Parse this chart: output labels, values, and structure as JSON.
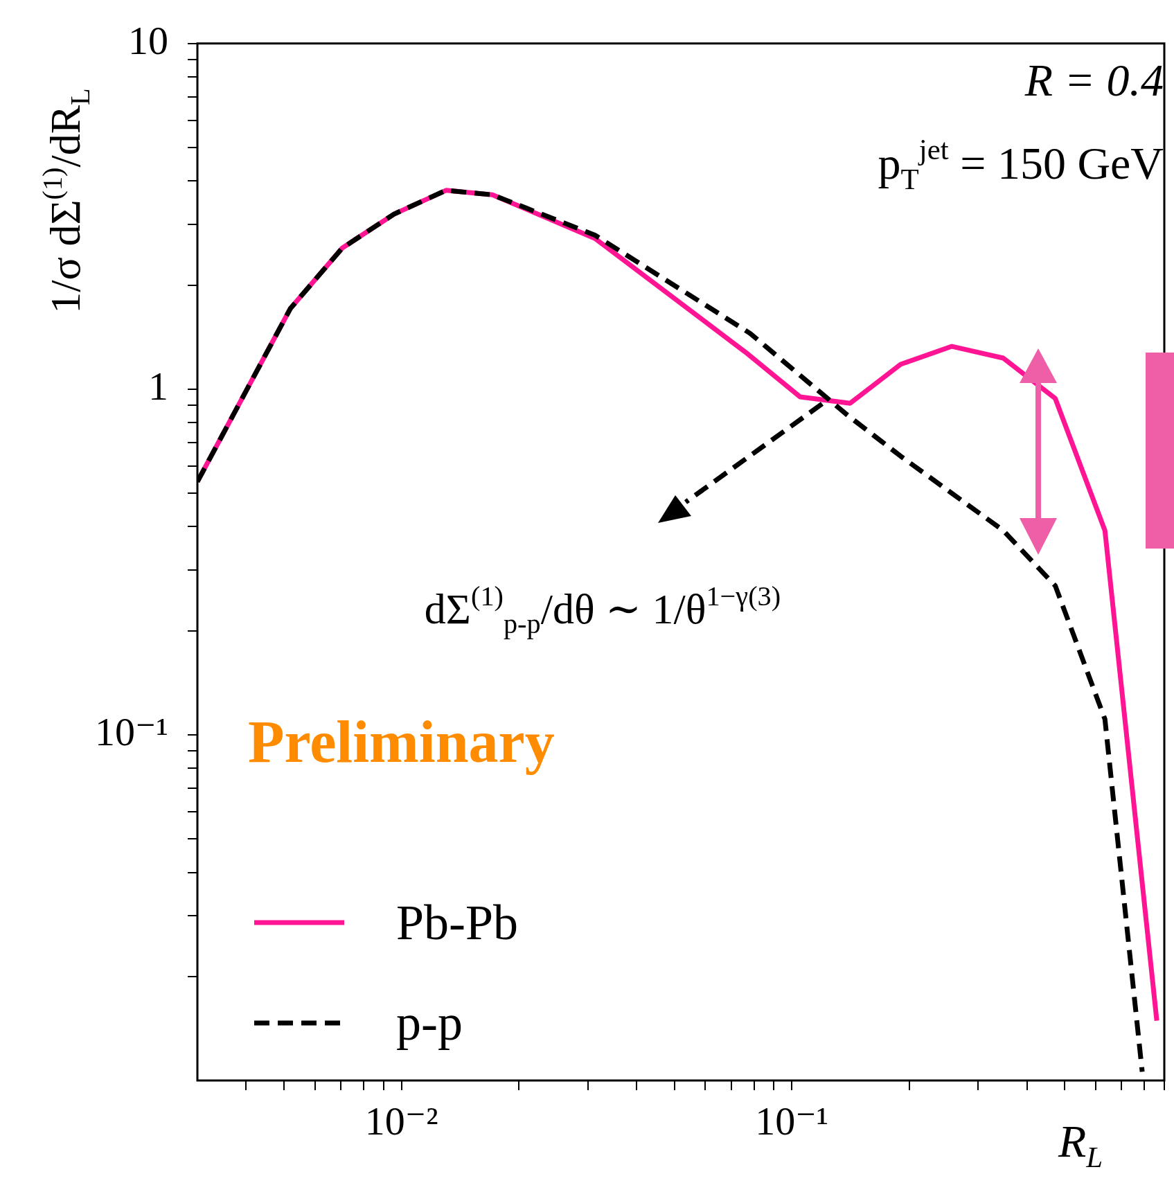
{
  "chart_data": {
    "type": "line",
    "xlabel": "R$_{L}$",
    "ylabel": "1/σ dΣ$^{(1)}$/dR$_{L}$",
    "log": "xy",
    "xlim": [
      0.003,
      0.9
    ],
    "ylim": [
      0.01,
      10
    ],
    "xticks": [
      {
        "value": 0.004,
        "label": null
      },
      {
        "value": 0.005,
        "label": null
      },
      {
        "value": 0.006,
        "label": null
      },
      {
        "value": 0.007,
        "label": null
      },
      {
        "value": 0.008,
        "label": null
      },
      {
        "value": 0.009,
        "label": null
      },
      {
        "value": 0.01,
        "label": "10⁻²"
      },
      {
        "value": 0.02,
        "label": null
      },
      {
        "value": 0.03,
        "label": null
      },
      {
        "value": 0.04,
        "label": null
      },
      {
        "value": 0.05,
        "label": null
      },
      {
        "value": 0.06,
        "label": null
      },
      {
        "value": 0.07,
        "label": null
      },
      {
        "value": 0.08,
        "label": null
      },
      {
        "value": 0.09,
        "label": null
      },
      {
        "value": 0.1,
        "label": "10⁻¹"
      },
      {
        "value": 0.2,
        "label": null
      },
      {
        "value": 0.3,
        "label": null
      },
      {
        "value": 0.4,
        "label": null
      },
      {
        "value": 0.5,
        "label": null
      },
      {
        "value": 0.6,
        "label": null
      },
      {
        "value": 0.7,
        "label": null
      },
      {
        "value": 0.8,
        "label": null
      },
      {
        "value": 0.9,
        "label": null
      }
    ],
    "yticks": [
      {
        "value": 0.02,
        "label": null
      },
      {
        "value": 0.03,
        "label": null
      },
      {
        "value": 0.04,
        "label": null
      },
      {
        "value": 0.05,
        "label": null
      },
      {
        "value": 0.06,
        "label": null
      },
      {
        "value": 0.07,
        "label": null
      },
      {
        "value": 0.08,
        "label": null
      },
      {
        "value": 0.09,
        "label": null
      },
      {
        "value": 0.1,
        "label": "10⁻¹"
      },
      {
        "value": 0.2,
        "label": null
      },
      {
        "value": 0.3,
        "label": null
      },
      {
        "value": 0.4,
        "label": null
      },
      {
        "value": 0.5,
        "label": null
      },
      {
        "value": 0.6,
        "label": null
      },
      {
        "value": 0.7,
        "label": null
      },
      {
        "value": 0.8,
        "label": null
      },
      {
        "value": 0.9,
        "label": null
      },
      1,
      {
        "value": 2,
        "label": null
      },
      {
        "value": 3,
        "label": null
      },
      {
        "value": 4,
        "label": null
      },
      {
        "value": 5,
        "label": null
      },
      {
        "value": 6,
        "label": null
      },
      {
        "value": 7,
        "label": null
      },
      {
        "value": 8,
        "label": null
      },
      {
        "value": 9,
        "label": null
      },
      10
    ],
    "grid": false,
    "legend": "bottom left",
    "marker": "none",
    "series": [
      {
        "name": "Pb-Pb",
        "color": "#ff1493",
        "line_style": "solid",
        "x": [
          0.003,
          0.00519,
          0.00705,
          0.00957,
          0.013,
          0.0171,
          0.0313,
          0.0767,
          0.105,
          0.141,
          0.19,
          0.257,
          0.348,
          0.473,
          0.634,
          0.861
        ],
        "values": [
          0.54,
          1.71,
          2.56,
          3.21,
          3.76,
          3.65,
          2.73,
          1.27,
          0.95,
          0.91,
          1.18,
          1.33,
          1.23,
          0.94,
          0.39,
          0.0149
        ]
      },
      {
        "name": "p-p",
        "color": "#000000",
        "line_style": "dashed",
        "x": [
          0.003,
          0.00519,
          0.00705,
          0.00957,
          0.013,
          0.0171,
          0.0313,
          0.0782,
          0.139,
          0.19,
          0.348,
          0.473,
          0.634,
          0.79
        ],
        "values": [
          0.54,
          1.71,
          2.56,
          3.21,
          3.76,
          3.65,
          2.79,
          1.45,
          0.84,
          0.64,
          0.39,
          0.27,
          0.111,
          0.0106
        ]
      }
    ],
    "annotations": [
      "R = 0.4",
      "p$_{T}$$^{jet}$ = 150 GeV",
      "dΣ$^{(1)}$$_{p-p}$/dθ ∼ 1/θ$^{1−γ(3)}$",
      "Preliminary"
    ]
  }
}
